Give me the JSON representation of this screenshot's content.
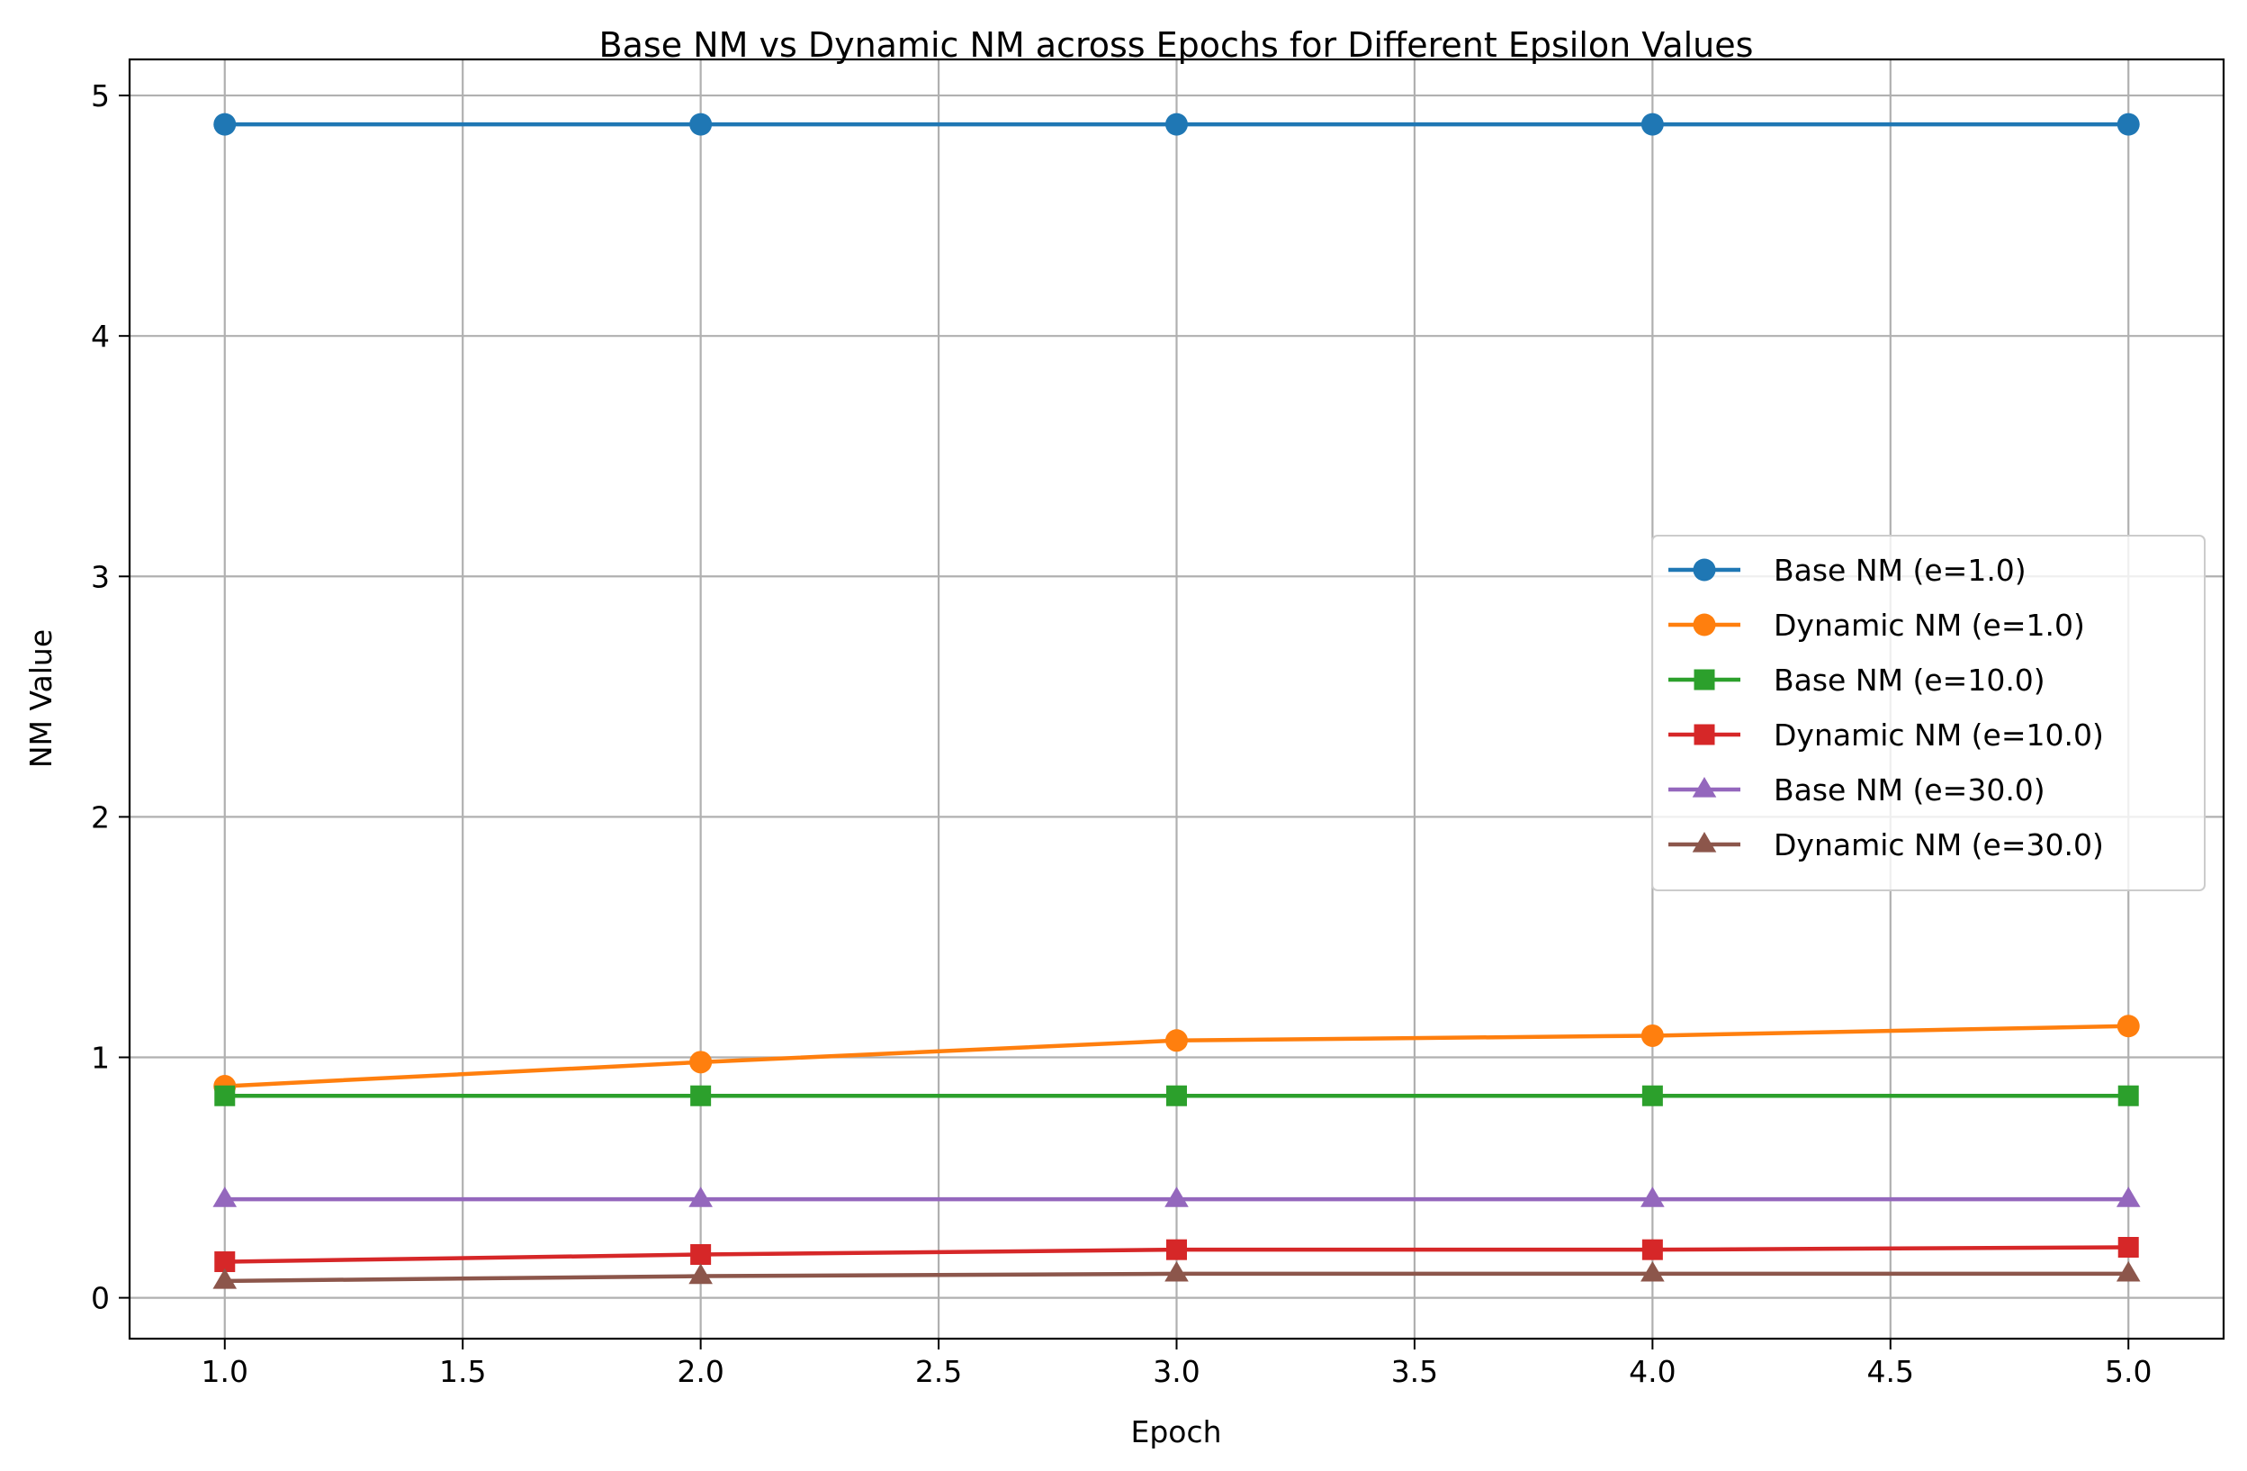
{
  "chart_data": {
    "type": "line",
    "title": "Base NM vs Dynamic NM across Epochs for Different Epsilon Values",
    "xlabel": "Epoch",
    "ylabel": "NM Value",
    "xlim": [
      0.8,
      5.2
    ],
    "ylim": [
      -0.17,
      5.15
    ],
    "xticks": [
      1.0,
      1.5,
      2.0,
      2.5,
      3.0,
      3.5,
      4.0,
      4.5,
      5.0
    ],
    "xtick_labels": [
      "1.0",
      "1.5",
      "2.0",
      "2.5",
      "3.0",
      "3.5",
      "4.0",
      "4.5",
      "5.0"
    ],
    "yticks": [
      0,
      1,
      2,
      3,
      4,
      5
    ],
    "ytick_labels": [
      "0",
      "1",
      "2",
      "3",
      "4",
      "5"
    ],
    "grid": true,
    "legend_position": "center-right",
    "x": [
      1,
      2,
      3,
      4,
      5
    ],
    "series": [
      {
        "name": "Base NM (e=1.0)",
        "color": "#1f77b4",
        "marker": "circle",
        "values": [
          4.88,
          4.88,
          4.88,
          4.88,
          4.88
        ]
      },
      {
        "name": "Dynamic NM (e=1.0)",
        "color": "#ff7f0e",
        "marker": "circle",
        "values": [
          0.88,
          0.98,
          1.07,
          1.09,
          1.13
        ]
      },
      {
        "name": "Base NM (e=10.0)",
        "color": "#2ca02c",
        "marker": "square",
        "values": [
          0.84,
          0.84,
          0.84,
          0.84,
          0.84
        ]
      },
      {
        "name": "Dynamic NM (e=10.0)",
        "color": "#d62728",
        "marker": "square",
        "values": [
          0.15,
          0.18,
          0.2,
          0.2,
          0.21
        ]
      },
      {
        "name": "Base NM (e=30.0)",
        "color": "#9467bd",
        "marker": "triangle",
        "values": [
          0.41,
          0.41,
          0.41,
          0.41,
          0.41
        ]
      },
      {
        "name": "Dynamic NM (e=30.0)",
        "color": "#8c564b",
        "marker": "triangle",
        "values": [
          0.07,
          0.09,
          0.1,
          0.1,
          0.1
        ]
      }
    ]
  }
}
